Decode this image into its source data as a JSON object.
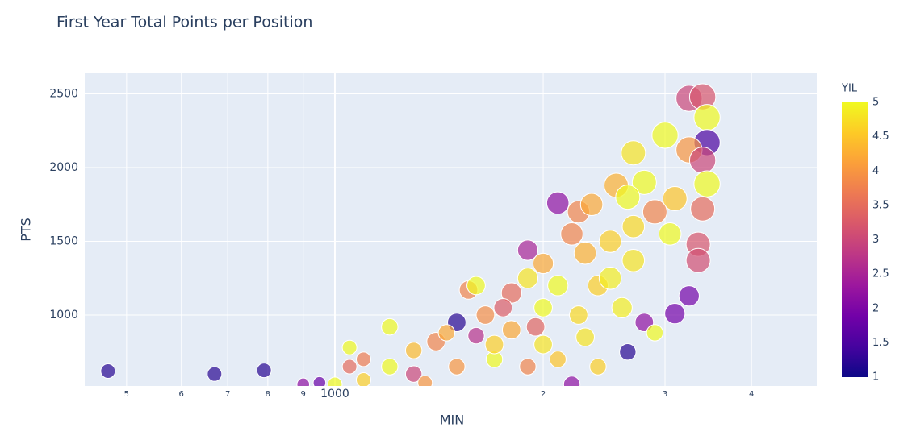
{
  "chart_data": {
    "type": "scatter",
    "title": "First Year Total Points per Position",
    "x_label": "MIN",
    "y_label": "PTS",
    "colorbar_title": "YIL",
    "log_x": true,
    "grid": true,
    "xlim": [
      435,
      4970
    ],
    "ylim": [
      519,
      2645
    ],
    "xticks": [
      {
        "value": 500,
        "label": "5"
      },
      {
        "value": 600,
        "label": "6"
      },
      {
        "value": 700,
        "label": "7"
      },
      {
        "value": 800,
        "label": "8"
      },
      {
        "value": 900,
        "label": "9"
      },
      1000,
      {
        "value": 2000,
        "label": "2"
      },
      {
        "value": 3000,
        "label": "3"
      },
      {
        "value": 4000,
        "label": "4"
      }
    ],
    "yticks": [
      1000,
      1500,
      2000,
      2500
    ],
    "clim": [
      1,
      5
    ],
    "cticks": [
      1,
      1.5,
      2,
      2.5,
      3,
      3.5,
      4,
      4.5,
      5
    ],
    "colorscale": [
      "#0d0887",
      "#46039f",
      "#7201a8",
      "#9c179e",
      "#bd3786",
      "#d8576b",
      "#ed7953",
      "#fb9f3a",
      "#fdca26",
      "#f0f921"
    ],
    "x": [
      470,
      670,
      790,
      1200,
      1560,
      1600,
      1900,
      2100,
      2250,
      3250,
      3400,
      3450,
      3450,
      3000,
      2700,
      3250,
      3400,
      2550,
      2800,
      3100,
      3450,
      3400,
      3350,
      3350,
      3100,
      3250,
      2700,
      2500,
      2300,
      2200,
      2000,
      1900,
      1800,
      2100,
      2400,
      2600,
      2800,
      2650,
      2900,
      2400,
      2200,
      2000,
      1800,
      1650,
      1500,
      1400,
      1300,
      1200,
      1100,
      1000,
      900,
      1050,
      1300,
      1500,
      1700,
      1900,
      2100,
      2300,
      1700,
      1600,
      1450,
      2000,
      2250,
      2500,
      2700,
      2900,
      2650,
      3050,
      1750,
      1950,
      2350,
      1050,
      1350,
      950,
      1100
    ],
    "y": [
      620,
      600,
      625,
      920,
      1170,
      1200,
      1440,
      1760,
      1700,
      2470,
      2480,
      2340,
      2170,
      2220,
      2100,
      2120,
      2050,
      1880,
      1900,
      1790,
      1890,
      1720,
      1480,
      1370,
      1010,
      1130,
      1370,
      1500,
      1420,
      1550,
      1350,
      1250,
      1150,
      1200,
      1200,
      1050,
      950,
      750,
      880,
      650,
      530,
      800,
      900,
      1000,
      950,
      820,
      760,
      650,
      560,
      530,
      530,
      650,
      600,
      650,
      700,
      650,
      700,
      850,
      800,
      860,
      880,
      1050,
      1000,
      1250,
      1600,
      1700,
      1800,
      1550,
      1050,
      920,
      1750,
      780,
      540,
      540,
      700
    ],
    "sizes": [
      15,
      15,
      15,
      17,
      19,
      19,
      21,
      23,
      23,
      27,
      27,
      27,
      27,
      27,
      25,
      27,
      27,
      25,
      25,
      25,
      27,
      25,
      25,
      25,
      21,
      21,
      23,
      23,
      23,
      23,
      21,
      21,
      21,
      21,
      21,
      21,
      19,
      17,
      17,
      17,
      17,
      19,
      19,
      19,
      19,
      19,
      17,
      17,
      15,
      15,
      13,
      15,
      17,
      17,
      17,
      17,
      17,
      19,
      19,
      17,
      17,
      19,
      19,
      23,
      23,
      25,
      25,
      23,
      19,
      19,
      23,
      15,
      15,
      13,
      15
    ],
    "colors": [
      1.2,
      1.2,
      1.2,
      5,
      3.8,
      5,
      2.5,
      2.2,
      3.8,
      3,
      3.2,
      5,
      1.5,
      5,
      4.8,
      4,
      3,
      4.3,
      5,
      4.5,
      5,
      3.5,
      3.2,
      3.1,
      1.9,
      1.9,
      4.8,
      4.6,
      4.3,
      3.8,
      4.2,
      4.8,
      3.5,
      5,
      4.6,
      4.9,
      2.2,
      1.2,
      5,
      4.6,
      2.2,
      4.8,
      4.2,
      3.9,
      1.2,
      3.8,
      4.4,
      5,
      4.6,
      5,
      2.2,
      3.5,
      3,
      4,
      5,
      3.8,
      4.5,
      4.8,
      4.6,
      2.7,
      4.2,
      5,
      4.7,
      4.9,
      4.7,
      3.8,
      5,
      5,
      3.3,
      3.4,
      4.2,
      5,
      4,
      1.8,
      3.7
    ]
  }
}
